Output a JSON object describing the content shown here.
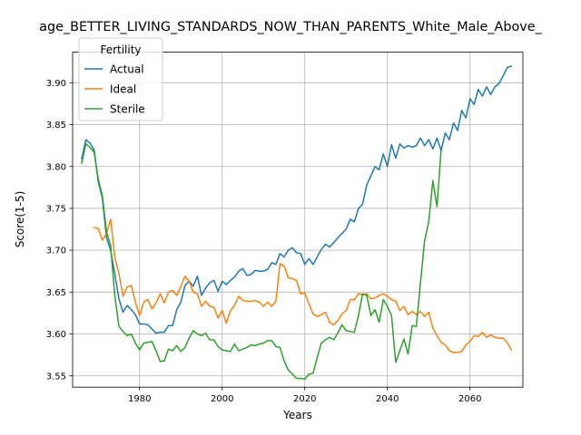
{
  "chart_data": {
    "type": "line",
    "title": "age_BETTER_LIVING_STANDARDS_NOW_THAN_PARENTS_White_Male_Above_",
    "xlabel": "Years",
    "ylabel": "Score(1-5)",
    "xlim": [
      1963.8,
      2072.8
    ],
    "ylim": [
      3.5365,
      3.9365
    ],
    "x_ticks": [
      1980,
      2000,
      2020,
      2040,
      2060
    ],
    "y_ticks": [
      3.55,
      3.6,
      3.65,
      3.7,
      3.75,
      3.8,
      3.85,
      3.9
    ],
    "x_tick_labels": [
      "1980",
      "2000",
      "2020",
      "2040",
      "2060"
    ],
    "y_tick_labels": [
      "3.55",
      "3.60",
      "3.65",
      "3.70",
      "3.75",
      "3.80",
      "3.85",
      "3.90"
    ],
    "grid": true,
    "legend": {
      "title": "Fertility",
      "position": "top-left"
    },
    "series": [
      {
        "name": "Actual",
        "color": "#1f77b4",
        "x": [
          1966,
          1967,
          1968,
          1969,
          1970,
          1971,
          1972,
          1973,
          1974,
          1975,
          1976,
          1977,
          1978,
          1979,
          1980,
          1981,
          1982,
          1983,
          1984,
          1985,
          1986,
          1987,
          1988,
          1989,
          1990,
          1991,
          1992,
          1993,
          1994,
          1995,
          1996,
          1997,
          1998,
          1999,
          2000,
          2001,
          2002,
          2003,
          2004,
          2005,
          2006,
          2007,
          2008,
          2009,
          2010,
          2011,
          2012,
          2013,
          2014,
          2015,
          2016,
          2017,
          2018,
          2019,
          2020,
          2021,
          2022,
          2023,
          2024,
          2025,
          2026,
          2027,
          2028,
          2029,
          2030,
          2031,
          2032,
          2033,
          2034,
          2035,
          2036,
          2037,
          2038,
          2039,
          2040,
          2041,
          2042,
          2043,
          2044,
          2045,
          2046,
          2047,
          2048,
          2049,
          2050,
          2051,
          2052,
          2053,
          2054,
          2055,
          2056,
          2057,
          2058,
          2059,
          2060,
          2061,
          2062,
          2063,
          2064,
          2065,
          2066,
          2067,
          2068,
          2069,
          2070
        ],
        "values": [
          3.809,
          3.832,
          3.828,
          3.82,
          3.782,
          3.762,
          3.715,
          3.7,
          3.672,
          3.642,
          3.626,
          3.634,
          3.629,
          3.623,
          3.612,
          3.612,
          3.611,
          3.606,
          3.601,
          3.602,
          3.602,
          3.61,
          3.61,
          3.629,
          3.638,
          3.658,
          3.663,
          3.657,
          3.669,
          3.646,
          3.655,
          3.661,
          3.664,
          3.651,
          3.663,
          3.659,
          3.664,
          3.668,
          3.675,
          3.678,
          3.67,
          3.671,
          3.676,
          3.675,
          3.675,
          3.677,
          3.685,
          3.683,
          3.696,
          3.692,
          3.7,
          3.703,
          3.697,
          3.696,
          3.683,
          3.69,
          3.683,
          3.692,
          3.701,
          3.707,
          3.704,
          3.709,
          3.715,
          3.72,
          3.725,
          3.737,
          3.734,
          3.75,
          3.755,
          3.778,
          3.789,
          3.8,
          3.796,
          3.815,
          3.8,
          3.826,
          3.81,
          3.827,
          3.822,
          3.825,
          3.823,
          3.825,
          3.834,
          3.825,
          3.832,
          3.821,
          3.834,
          3.819,
          3.84,
          3.832,
          3.852,
          3.843,
          3.867,
          3.858,
          3.881,
          3.874,
          3.892,
          3.884,
          3.895,
          3.886,
          3.895,
          3.899,
          3.908,
          3.918,
          3.92
        ]
      },
      {
        "name": "Ideal",
        "color": "#ff7f0e",
        "x": [
          1969,
          1970,
          1971,
          1972,
          1973,
          1974,
          1975,
          1976,
          1977,
          1978,
          1979,
          1980,
          1981,
          1982,
          1983,
          1984,
          1985,
          1986,
          1987,
          1988,
          1989,
          1990,
          1991,
          1992,
          1993,
          1994,
          1995,
          1996,
          1997,
          1998,
          1999,
          2000,
          2001,
          2002,
          2003,
          2004,
          2005,
          2006,
          2007,
          2008,
          2009,
          2010,
          2011,
          2012,
          2013,
          2014,
          2015,
          2016,
          2017,
          2018,
          2019,
          2020,
          2021,
          2022,
          2023,
          2024,
          2025,
          2026,
          2027,
          2028,
          2029,
          2030,
          2031,
          2032,
          2033,
          2034,
          2035,
          2036,
          2037,
          2038,
          2039,
          2040,
          2041,
          2042,
          2043,
          2044,
          2045,
          2046,
          2047,
          2048,
          2049,
          2050,
          2051,
          2052,
          2053,
          2054,
          2055,
          2056,
          2057,
          2058,
          2059,
          2060,
          2061,
          2062,
          2063,
          2064,
          2065,
          2066,
          2067,
          2068,
          2069,
          2070
        ],
        "values": [
          3.727,
          3.726,
          3.712,
          3.72,
          3.737,
          3.692,
          3.672,
          3.645,
          3.656,
          3.658,
          3.638,
          3.622,
          3.638,
          3.641,
          3.63,
          3.637,
          3.648,
          3.637,
          3.65,
          3.652,
          3.646,
          3.657,
          3.669,
          3.663,
          3.65,
          3.648,
          3.633,
          3.639,
          3.633,
          3.632,
          3.619,
          3.628,
          3.613,
          3.628,
          3.634,
          3.645,
          3.64,
          3.639,
          3.639,
          3.64,
          3.638,
          3.633,
          3.638,
          3.633,
          3.639,
          3.684,
          3.681,
          3.667,
          3.666,
          3.664,
          3.648,
          3.649,
          3.636,
          3.624,
          3.621,
          3.623,
          3.626,
          3.614,
          3.611,
          3.616,
          3.624,
          3.628,
          3.641,
          3.641,
          3.648,
          3.647,
          3.648,
          3.642,
          3.643,
          3.646,
          3.648,
          3.645,
          3.641,
          3.639,
          3.628,
          3.633,
          3.623,
          3.627,
          3.623,
          3.627,
          3.621,
          3.626,
          3.607,
          3.598,
          3.59,
          3.587,
          3.58,
          3.578,
          3.578,
          3.579,
          3.587,
          3.591,
          3.598,
          3.597,
          3.602,
          3.596,
          3.599,
          3.596,
          3.595,
          3.595,
          3.59,
          3.581
        ]
      },
      {
        "name": "Sterile",
        "color": "#2ca02c",
        "x": [
          1966,
          1967,
          1968,
          1969,
          1970,
          1971,
          1972,
          1973,
          1974,
          1975,
          1976,
          1977,
          1978,
          1979,
          1980,
          1981,
          1982,
          1983,
          1984,
          1985,
          1986,
          1987,
          1988,
          1989,
          1990,
          1991,
          1992,
          1993,
          1994,
          1995,
          1996,
          1997,
          1998,
          1999,
          2000,
          2001,
          2002,
          2003,
          2004,
          2005,
          2006,
          2007,
          2008,
          2009,
          2010,
          2011,
          2012,
          2013,
          2014,
          2015,
          2016,
          2017,
          2018,
          2019,
          2020,
          2021,
          2022,
          2023,
          2024,
          2025,
          2026,
          2027,
          2028,
          2029,
          2030,
          2031,
          2032,
          2033,
          2034,
          2035,
          2036,
          2037,
          2038,
          2039,
          2040,
          2041,
          2042,
          2043,
          2044,
          2045,
          2046,
          2047,
          2048,
          2049,
          2050,
          2051,
          2052,
          2053
        ],
        "values": [
          3.804,
          3.827,
          3.823,
          3.817,
          3.785,
          3.765,
          3.722,
          3.706,
          3.646,
          3.609,
          3.603,
          3.598,
          3.6,
          3.589,
          3.581,
          3.589,
          3.59,
          3.591,
          3.58,
          3.567,
          3.568,
          3.582,
          3.58,
          3.586,
          3.579,
          3.584,
          3.595,
          3.604,
          3.6,
          3.598,
          3.601,
          3.593,
          3.593,
          3.585,
          3.581,
          3.58,
          3.579,
          3.588,
          3.58,
          3.582,
          3.584,
          3.587,
          3.586,
          3.588,
          3.589,
          3.592,
          3.592,
          3.585,
          3.584,
          3.568,
          3.557,
          3.552,
          3.547,
          3.547,
          3.546,
          3.552,
          3.553,
          3.572,
          3.589,
          3.593,
          3.596,
          3.593,
          3.601,
          3.611,
          3.604,
          3.603,
          3.602,
          3.622,
          3.648,
          3.646,
          3.622,
          3.629,
          3.614,
          3.641,
          3.633,
          3.622,
          3.566,
          3.58,
          3.594,
          3.576,
          3.61,
          3.609,
          3.661,
          3.711,
          3.734,
          3.783,
          3.752,
          3.82
        ]
      }
    ]
  }
}
